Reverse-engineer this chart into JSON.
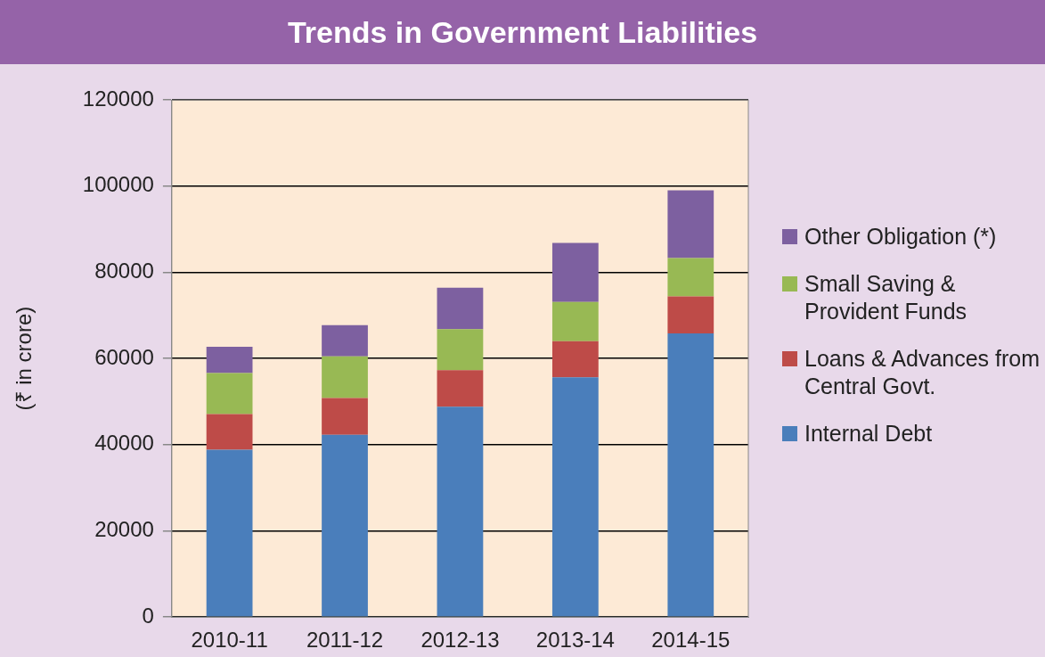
{
  "chart_data": {
    "type": "bar",
    "title": "Trends in Government Liabilities",
    "ylabel": "(₹ in crore)",
    "categories": [
      "2010-11",
      "2011-12",
      "2012-13",
      "2013-14",
      "2014-15"
    ],
    "series": [
      {
        "name": "Internal Debt",
        "color": "#4a7ebb",
        "values": [
          38800,
          42300,
          48800,
          55600,
          65800
        ]
      },
      {
        "name": "Loans & Advances from Central Govt.",
        "color": "#be4b48",
        "values": [
          8300,
          8500,
          8500,
          8400,
          8600
        ]
      },
      {
        "name": "Small Saving & Provident Funds",
        "color": "#98b954",
        "values": [
          9500,
          9700,
          9500,
          9100,
          8900
        ]
      },
      {
        "name": "Other Obligation (*)",
        "color": "#7d60a0",
        "values": [
          6100,
          7200,
          9600,
          13700,
          15700
        ]
      }
    ],
    "stacked": true,
    "ylim": [
      0,
      120000
    ],
    "yticks": [
      0,
      20000,
      40000,
      60000,
      80000,
      100000,
      120000
    ],
    "grid": "y",
    "legend": "right"
  }
}
